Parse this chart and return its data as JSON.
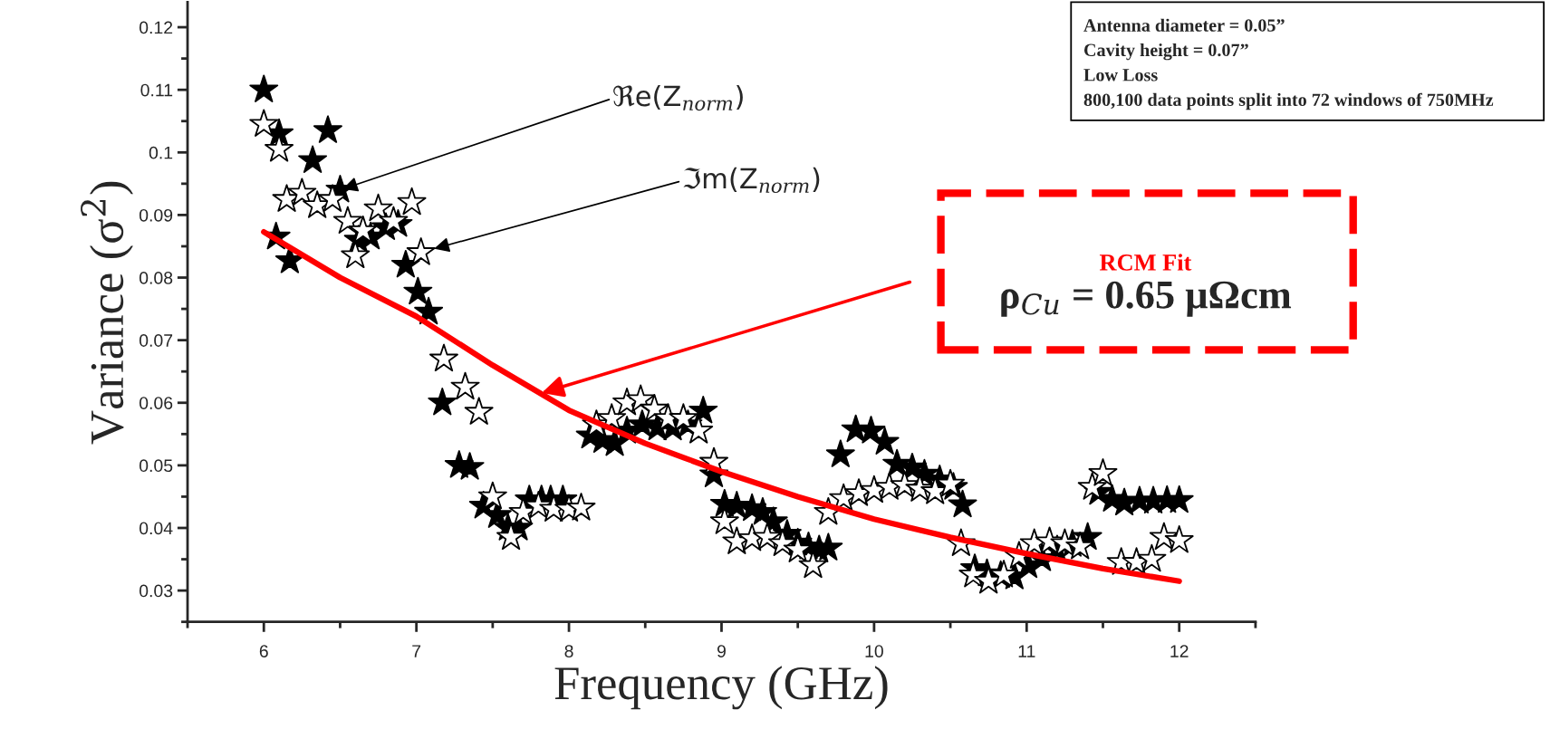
{
  "chart_data": {
    "type": "scatter",
    "xlabel": "Frequency (GHz)",
    "ylabel": "Variance (σ$^{2}$)",
    "xlim": [
      5.5,
      12.5
    ],
    "xticks": [
      6,
      7,
      8,
      9,
      10,
      11,
      12
    ],
    "ylim": [
      0.025,
      0.124
    ],
    "yticks": [
      0.03,
      0.04,
      0.05,
      0.06,
      0.07,
      0.08,
      0.09,
      0.1,
      0.11,
      0.12
    ],
    "marker": "star",
    "grid": false,
    "series": [
      {
        "color": "#000000",
        "x": [
          6.0,
          6.1,
          6.08,
          6.17,
          6.32,
          6.42,
          6.5,
          6.62,
          6.7,
          6.8,
          6.88,
          6.93,
          7.01,
          7.08,
          7.17,
          7.28,
          7.35,
          7.44,
          7.53,
          7.6,
          7.67,
          7.74,
          7.82,
          7.88,
          7.96,
          8.14,
          8.22,
          8.3,
          8.38,
          8.48,
          8.58,
          8.68,
          8.78,
          8.88,
          8.95,
          9.02,
          9.1,
          9.2,
          9.27,
          9.34,
          9.43,
          9.5,
          9.57,
          9.64,
          9.7,
          9.78,
          9.88,
          9.98,
          10.07,
          10.15,
          10.25,
          10.33,
          10.43,
          10.52,
          10.58,
          10.66,
          10.74,
          10.83,
          10.92,
          11.01,
          11.1,
          11.2,
          11.3,
          11.4,
          11.47,
          11.56,
          11.64,
          11.74,
          11.83,
          11.92,
          12.0
        ],
        "values": [
          0.11,
          0.103,
          0.0865,
          0.0827,
          0.0987,
          0.1035,
          0.094,
          0.086,
          0.0865,
          0.088,
          0.0885,
          0.082,
          0.0777,
          0.0745,
          0.06,
          0.05,
          0.0497,
          0.0435,
          0.042,
          0.04,
          0.04,
          0.0445,
          0.0445,
          0.0445,
          0.0445,
          0.0547,
          0.054,
          0.0535,
          0.0555,
          0.0565,
          0.056,
          0.056,
          0.0565,
          0.0587,
          0.0485,
          0.0438,
          0.0435,
          0.0431,
          0.0425,
          0.041,
          0.039,
          0.0376,
          0.037,
          0.0365,
          0.0368,
          0.0517,
          0.0557,
          0.0555,
          0.0537,
          0.0502,
          0.0496,
          0.0486,
          0.0477,
          0.0465,
          0.0437,
          0.0335,
          0.0327,
          0.0324,
          0.0322,
          0.034,
          0.0351,
          0.0365,
          0.0374,
          0.0385,
          0.0457,
          0.0446,
          0.044,
          0.0443,
          0.0443,
          0.0444,
          0.0444
        ]
      },
      {
        "color": "#ffffff",
        "x": [
          6.0,
          6.1,
          6.15,
          6.25,
          6.35,
          6.45,
          6.55,
          6.6,
          6.65,
          6.75,
          6.85,
          6.97,
          7.03,
          7.18,
          7.32,
          7.41,
          7.5,
          7.62,
          7.7,
          7.8,
          7.9,
          8.0,
          8.08,
          8.18,
          8.28,
          8.38,
          8.47,
          8.56,
          8.65,
          8.75,
          8.85,
          8.95,
          9.02,
          9.1,
          9.2,
          9.3,
          9.4,
          9.5,
          9.6,
          9.7,
          9.8,
          9.9,
          10.0,
          10.1,
          10.2,
          10.3,
          10.4,
          10.5,
          10.57,
          10.65,
          10.75,
          10.85,
          10.95,
          11.05,
          11.15,
          11.25,
          11.35,
          11.43,
          11.5,
          11.62,
          11.72,
          11.82,
          11.9,
          12.0
        ],
        "values": [
          0.1045,
          0.1005,
          0.0925,
          0.0935,
          0.0915,
          0.0925,
          0.089,
          0.0835,
          0.0875,
          0.091,
          0.089,
          0.092,
          0.084,
          0.067,
          0.0625,
          0.0585,
          0.045,
          0.0385,
          0.0425,
          0.0435,
          0.043,
          0.043,
          0.0432,
          0.0565,
          0.0575,
          0.06,
          0.0605,
          0.059,
          0.0575,
          0.0575,
          0.0555,
          0.0505,
          0.041,
          0.0378,
          0.0383,
          0.0385,
          0.0375,
          0.0365,
          0.034,
          0.0425,
          0.0447,
          0.0455,
          0.046,
          0.0465,
          0.0468,
          0.0462,
          0.0458,
          0.047,
          0.0375,
          0.0325,
          0.0315,
          0.0325,
          0.0355,
          0.0375,
          0.0378,
          0.0375,
          0.037,
          0.0465,
          0.0487,
          0.0345,
          0.0345,
          0.035,
          0.0385,
          0.038
        ]
      },
      {
        "type": "line",
        "color": "#ff0000",
        "marker": "none",
        "x": [
          6.0,
          6.5,
          7.0,
          7.5,
          8.0,
          8.5,
          9.0,
          9.5,
          10.0,
          10.5,
          11.0,
          11.5,
          12.0
        ],
        "values": [
          0.0873,
          0.08,
          0.0738,
          0.066,
          0.0588,
          0.0535,
          0.049,
          0.045,
          0.0414,
          0.0385,
          0.0359,
          0.0335,
          0.0315
        ]
      }
    ],
    "annotations": [
      {
        "text": "ℜe(Z$_{norm}$)",
        "x": 6.5,
        "y": 0.094
      },
      {
        "text": "ℑm(Z$_{norm}$)",
        "x": 7.1,
        "y": 0.0845
      },
      "Antenna diameter = 0.05”",
      "Cavity height = 0.07”",
      "Low Loss",
      "800,100 data points split into 72 windows of 750MHz",
      "RCM Fit",
      "ρ$_{Cu}$ = 0.65 μΩcm"
    ]
  }
}
